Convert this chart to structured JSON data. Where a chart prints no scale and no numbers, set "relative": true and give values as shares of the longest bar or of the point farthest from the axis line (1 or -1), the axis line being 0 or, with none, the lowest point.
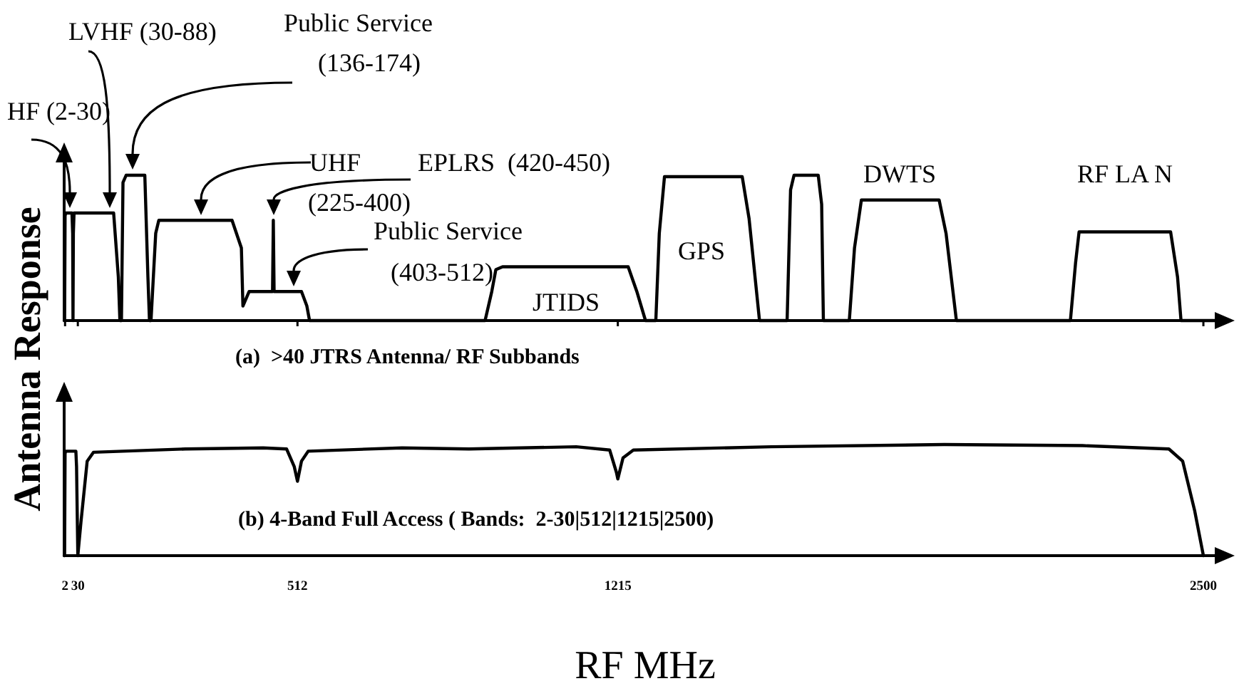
{
  "chart_data": [
    {
      "type": "line",
      "title": "(a)  >40 JTRS Antenna/ RF Subbands",
      "ylabel": "Antenna Response",
      "relative": true,
      "xlim": [
        0,
        2550
      ],
      "xticks": [
        2,
        30,
        512,
        1215,
        2500
      ],
      "tick_labels": false,
      "color": "#000000",
      "x": [
        0,
        1,
        2,
        3.5,
        17.1,
        18.7,
        19.4,
        20.2,
        21.7,
        108.6,
        118.9,
        122.3,
        125.7,
        129.1,
        136,
        177,
        183.8,
        187.2,
        190.6,
        200.9,
        207.7,
        368.4,
        388.9,
        392.3,
        399.1,
        406,
        457.3,
        459,
        460.7,
        520.8,
        532.6,
        538.5,
        923.7,
        938.4,
        947.3,
        962,
        1237.7,
        1256.7,
        1275.7,
        1298.4,
        1306,
        1317.4,
        1488,
        1503.1,
        1525.9,
        1586.5,
        1594.1,
        1601.7,
        1654.8,
        1662.3,
        1666.1,
        1723,
        1734.4,
        1749.5,
        1920.1,
        1935.3,
        1958,
        2208.2,
        2219.6,
        2227.2,
        2428.1,
        2443.3,
        2450.9,
        2550
      ],
      "values": [
        0,
        0,
        0.72,
        0.74,
        0.74,
        0.6,
        0,
        0.6,
        0.74,
        0.74,
        0.3,
        0,
        0,
        0.95,
        1,
        1,
        0.3,
        0,
        0,
        0.6,
        0.69,
        0.69,
        0.5,
        0.1,
        0.15,
        0.2,
        0.2,
        0.69,
        0.2,
        0.2,
        0.1,
        0,
        0,
        0.2,
        0.35,
        0.37,
        0.37,
        0.2,
        0,
        0,
        0.6,
        0.99,
        0.99,
        0.7,
        0,
        0,
        0.9,
        1,
        1,
        0.8,
        0,
        0,
        0.5,
        0.83,
        0.83,
        0.6,
        0,
        0,
        0.4,
        0.61,
        0.61,
        0.3,
        0,
        0
      ],
      "annotations": [
        "HF (2-30)",
        "LVHF (30-88)",
        "Public Service\n(136-174)",
        "UHF\n(225-400)",
        "EPLRS  (420-450)",
        "Public Service\n(403-512)",
        "JTIDS",
        "GPS",
        "DWTS",
        "RF LA N"
      ]
    },
    {
      "type": "line",
      "title": "(b) 4-Band Full Access ( Bands:  2-30|512|1215|2500)",
      "xlabel": "RF MHz",
      "relative": true,
      "xlim": [
        0,
        2550
      ],
      "xticks": [
        2,
        30,
        512,
        1215,
        2500
      ],
      "color": "#000000",
      "x": [
        0,
        1,
        2,
        3.5,
        25.7,
        27.2,
        30,
        36.8,
        50.5,
        64.2,
        265.8,
        436.7,
        488,
        505,
        512,
        520.8,
        535.5,
        741.4,
        888.4,
        1123.7,
        1197.2,
        1211.9,
        1215,
        1226.4,
        1249.1,
        1552.4,
        1931.5,
        2234.8,
        2424.3,
        2454.6,
        2481.1,
        2500
      ],
      "values": [
        0,
        0,
        0.92,
        0.94,
        0.94,
        0.8,
        0,
        0.3,
        0.85,
        0.93,
        0.96,
        0.97,
        0.96,
        0.8,
        0.67,
        0.85,
        0.94,
        0.97,
        0.96,
        0.98,
        0.95,
        0.75,
        0.69,
        0.88,
        0.95,
        0.98,
        1,
        0.99,
        0.96,
        0.85,
        0.4,
        0
      ]
    }
  ]
}
